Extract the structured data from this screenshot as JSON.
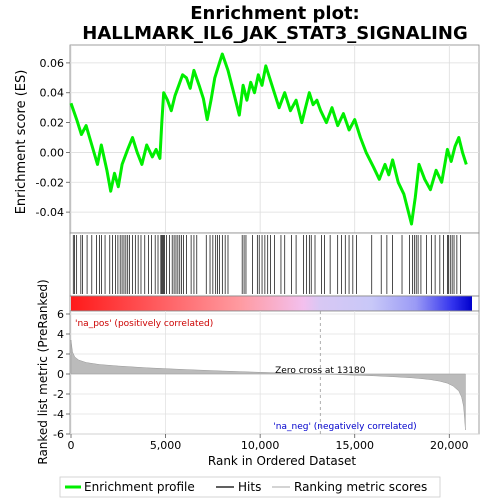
{
  "chart_data": {
    "type": "line",
    "title": "Enrichment plot:",
    "subtitle": "HALLMARK_IL6_JAK_STAT3_SIGNALING",
    "ylabel_top": "Enrichment score (ES)",
    "ylabel_bottom": "Ranked list metric (PreRanked)",
    "xlabel": "Rank in Ordered Dataset",
    "xlim": [
      0,
      21200
    ],
    "es_ylim": [
      -0.054,
      0.072
    ],
    "metric_ylim": [
      -6,
      6.3
    ],
    "es_yticks": [
      -0.04,
      -0.02,
      0.0,
      0.02,
      0.04,
      0.06
    ],
    "es_yticklabels": [
      "-0.04",
      "-0.02",
      "0.00",
      "0.02",
      "0.04",
      "0.06"
    ],
    "metric_yticks": [
      -6,
      -4,
      -2,
      0,
      2,
      4,
      6
    ],
    "metric_yticklabels": [
      "-6",
      "-4",
      "-2",
      "0",
      "2",
      "4",
      "6"
    ],
    "xticks": [
      0,
      5000,
      10000,
      15000,
      20000
    ],
    "xticklabels": [
      "0",
      "5,000",
      "10,000",
      "15,000",
      "20,000"
    ],
    "zero_cross_label": "Zero cross at 13180",
    "zero_cross": 13180,
    "pos_label": "'na_pos' (positively correlated)",
    "neg_label": "'na_neg' (negatively correlated)",
    "legend": [
      {
        "label": "Enrichment profile",
        "color": "#00ee00"
      },
      {
        "label": "Hits",
        "color": "#000000"
      },
      {
        "label": "Ranking metric scores",
        "color": "#bbbbbb"
      }
    ],
    "es_color": "#00ee00",
    "es_curve": {
      "x": [
        0,
        300,
        550,
        800,
        1100,
        1400,
        1600,
        1900,
        2100,
        2300,
        2500,
        2700,
        3000,
        3250,
        3500,
        3750,
        4000,
        4300,
        4500,
        4700,
        4800,
        4900,
        5100,
        5300,
        5500,
        5700,
        5900,
        6100,
        6300,
        6500,
        6800,
        7000,
        7200,
        7400,
        7600,
        7800,
        8000,
        8300,
        8600,
        8900,
        9100,
        9300,
        9500,
        9700,
        9900,
        10100,
        10300,
        10500,
        10700,
        11000,
        11300,
        11600,
        11900,
        12200,
        12400,
        12600,
        12800,
        13000,
        13200,
        13500,
        13800,
        14100,
        14400,
        14700,
        15000,
        15300,
        15600,
        16000,
        16300,
        16600,
        16800,
        17000,
        17300,
        17600,
        17800,
        18000,
        18200,
        18400,
        18700,
        19000,
        19300,
        19600,
        19900,
        20100,
        20300,
        20500,
        20700,
        20900
      ],
      "y": [
        0.033,
        0.022,
        0.012,
        0.018,
        0.005,
        -0.008,
        0.005,
        -0.012,
        -0.026,
        -0.014,
        -0.023,
        -0.008,
        0.002,
        0.01,
        0.0,
        -0.008,
        0.005,
        -0.003,
        0.002,
        -0.004,
        0.02,
        0.04,
        0.035,
        0.028,
        0.038,
        0.045,
        0.052,
        0.05,
        0.043,
        0.055,
        0.044,
        0.036,
        0.022,
        0.035,
        0.05,
        0.058,
        0.066,
        0.055,
        0.04,
        0.025,
        0.045,
        0.035,
        0.047,
        0.04,
        0.052,
        0.045,
        0.058,
        0.05,
        0.042,
        0.03,
        0.04,
        0.028,
        0.035,
        0.02,
        0.03,
        0.04,
        0.032,
        0.035,
        0.028,
        0.02,
        0.03,
        0.018,
        0.026,
        0.015,
        0.022,
        0.01,
        0.0,
        -0.01,
        -0.018,
        -0.008,
        -0.015,
        -0.005,
        -0.02,
        -0.028,
        -0.038,
        -0.048,
        -0.03,
        -0.008,
        -0.018,
        -0.025,
        -0.012,
        -0.02,
        0.002,
        -0.006,
        0.004,
        0.01,
        0.0,
        -0.008
      ]
    },
    "hits": [
      120,
      180,
      300,
      520,
      600,
      850,
      1100,
      1350,
      1500,
      1620,
      1800,
      2050,
      2200,
      2350,
      2480,
      2600,
      2700,
      2800,
      2900,
      3000,
      3100,
      3250,
      3400,
      3550,
      3700,
      3900,
      4100,
      4250,
      4450,
      4600,
      4750,
      4800,
      4850,
      4900,
      4950,
      5050,
      5200,
      5350,
      5450,
      5550,
      5650,
      5750,
      5850,
      5950,
      6100,
      6350,
      6500,
      6650,
      7150,
      7350,
      7500,
      7650,
      7750,
      7850,
      8000,
      8150,
      8300,
      9050,
      9150,
      9250,
      9600,
      9850,
      9950,
      10100,
      10250,
      10400,
      10550,
      10750,
      11100,
      11300,
      11650,
      11900,
      12300,
      12450,
      12600,
      12700,
      12900,
      13250,
      13400,
      13700,
      14100,
      14300,
      14500,
      14700,
      14900,
      15100,
      15900,
      16400,
      16700,
      17000,
      17500,
      17900,
      18050,
      18150,
      18250,
      18350,
      18500,
      18800,
      19050,
      19250,
      19500,
      19700,
      19900,
      19950,
      20050,
      20150,
      20250,
      20400,
      20600
    ],
    "metric_curve": {
      "x": [
        0,
        80,
        200,
        400,
        800,
        1500,
        2500,
        4000,
        6000,
        8000,
        10000,
        12000,
        13180,
        14000,
        15000,
        16000,
        17000,
        18000,
        18500,
        19000,
        19500,
        19900,
        20200,
        20500,
        20650,
        20750,
        20800,
        20850
      ],
      "y": [
        3.4,
        2.2,
        1.7,
        1.4,
        1.15,
        0.95,
        0.8,
        0.62,
        0.45,
        0.3,
        0.17,
        0.06,
        0.0,
        -0.05,
        -0.12,
        -0.18,
        -0.27,
        -0.38,
        -0.46,
        -0.56,
        -0.72,
        -0.92,
        -1.2,
        -1.7,
        -2.3,
        -3.2,
        -4.2,
        -5.6
      ]
    },
    "heatmap_bar_colors": {
      "positive": "#ff0000",
      "negative": "#0000ff",
      "neutral": "#ffffff"
    }
  }
}
